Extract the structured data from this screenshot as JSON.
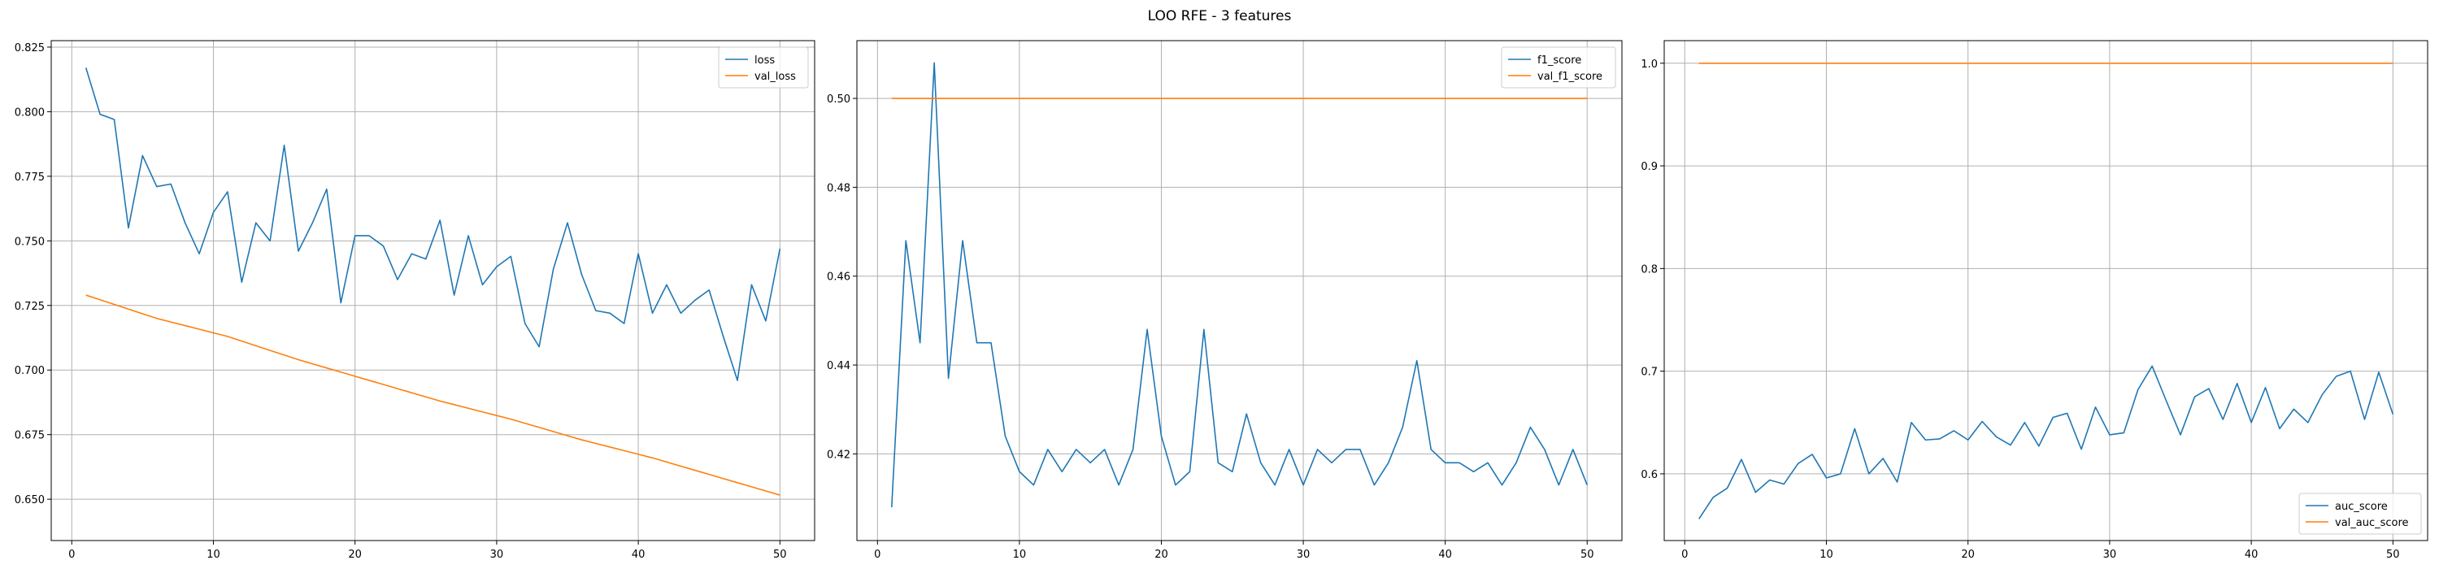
{
  "figure": {
    "title": "LOO RFE - 3 features"
  },
  "colors": {
    "series1": "#1f77b4",
    "series2": "#ff7f0e",
    "grid": "#b0b0b0",
    "axis": "#000000"
  },
  "chart_data": [
    {
      "type": "line",
      "legend": "top-right",
      "grid": true,
      "xlim": [
        -1.45,
        52.45
      ],
      "ylim": [
        0.634,
        0.8275
      ],
      "xticks": [
        0,
        10,
        20,
        30,
        40,
        50
      ],
      "xtick_labels": [
        "0",
        "10",
        "20",
        "30",
        "40",
        "50"
      ],
      "yticks": [
        0.65,
        0.675,
        0.7,
        0.725,
        0.75,
        0.775,
        0.8,
        0.825
      ],
      "ytick_labels": [
        "0.650",
        "0.675",
        "0.700",
        "0.725",
        "0.750",
        "0.775",
        "0.800",
        "0.825"
      ],
      "x": [
        1,
        2,
        3,
        4,
        5,
        6,
        7,
        8,
        9,
        10,
        11,
        12,
        13,
        14,
        15,
        16,
        17,
        18,
        19,
        20,
        21,
        22,
        23,
        24,
        25,
        26,
        27,
        28,
        29,
        30,
        31,
        32,
        33,
        34,
        35,
        36,
        37,
        38,
        39,
        40,
        41,
        42,
        43,
        44,
        45,
        46,
        47,
        48,
        49,
        50
      ],
      "series": [
        {
          "name": "loss",
          "color": "#1f77b4",
          "values": [
            0.817,
            0.799,
            0.797,
            0.755,
            0.783,
            0.771,
            0.772,
            0.757,
            0.745,
            0.761,
            0.769,
            0.734,
            0.757,
            0.75,
            0.787,
            0.746,
            0.757,
            0.77,
            0.726,
            0.752,
            0.752,
            0.748,
            0.735,
            0.745,
            0.743,
            0.758,
            0.729,
            0.752,
            0.733,
            0.74,
            0.744,
            0.718,
            0.709,
            0.739,
            0.757,
            0.737,
            0.723,
            0.722,
            0.718,
            0.745,
            0.722,
            0.733,
            0.722,
            0.727,
            0.731,
            0.713,
            0.696,
            0.733,
            0.719,
            0.747
          ]
        },
        {
          "name": "val_loss",
          "color": "#ff7f0e",
          "values": [
            0.729,
            0.7272,
            0.7254,
            0.7236,
            0.7218,
            0.72,
            0.7186,
            0.7172,
            0.7158,
            0.7144,
            0.713,
            0.7112,
            0.7094,
            0.7076,
            0.7058,
            0.704,
            0.7024,
            0.7008,
            0.6992,
            0.6976,
            0.696,
            0.6944,
            0.6928,
            0.6912,
            0.6896,
            0.688,
            0.6866,
            0.6852,
            0.6838,
            0.6824,
            0.681,
            0.6794,
            0.6778,
            0.6762,
            0.6746,
            0.673,
            0.6716,
            0.6702,
            0.6688,
            0.6674,
            0.666,
            0.6644,
            0.6628,
            0.6612,
            0.6596,
            0.658,
            0.6564,
            0.6548,
            0.6532,
            0.6516
          ]
        }
      ]
    },
    {
      "type": "line",
      "legend": "top-right",
      "grid": true,
      "xlim": [
        -1.45,
        52.45
      ],
      "ylim": [
        0.4005,
        0.513
      ],
      "xticks": [
        0,
        10,
        20,
        30,
        40,
        50
      ],
      "xtick_labels": [
        "0",
        "10",
        "20",
        "30",
        "40",
        "50"
      ],
      "yticks": [
        0.42,
        0.44,
        0.46,
        0.48,
        0.5
      ],
      "ytick_labels": [
        "0.42",
        "0.44",
        "0.46",
        "0.48",
        "0.50"
      ],
      "x": [
        1,
        2,
        3,
        4,
        5,
        6,
        7,
        8,
        9,
        10,
        11,
        12,
        13,
        14,
        15,
        16,
        17,
        18,
        19,
        20,
        21,
        22,
        23,
        24,
        25,
        26,
        27,
        28,
        29,
        30,
        31,
        32,
        33,
        34,
        35,
        36,
        37,
        38,
        39,
        40,
        41,
        42,
        43,
        44,
        45,
        46,
        47,
        48,
        49,
        50
      ],
      "series": [
        {
          "name": "f1_score",
          "color": "#1f77b4",
          "values": [
            0.408,
            0.468,
            0.445,
            0.508,
            0.437,
            0.468,
            0.445,
            0.445,
            0.424,
            0.416,
            0.413,
            0.421,
            0.416,
            0.421,
            0.418,
            0.421,
            0.413,
            0.421,
            0.448,
            0.424,
            0.413,
            0.416,
            0.448,
            0.418,
            0.416,
            0.429,
            0.418,
            0.413,
            0.421,
            0.413,
            0.421,
            0.418,
            0.421,
            0.421,
            0.413,
            0.418,
            0.426,
            0.441,
            0.421,
            0.418,
            0.418,
            0.416,
            0.418,
            0.413,
            0.418,
            0.426,
            0.421,
            0.413,
            0.421,
            0.413
          ]
        },
        {
          "name": "val_f1_score",
          "color": "#ff7f0e",
          "values": [
            0.5,
            0.5,
            0.5,
            0.5,
            0.5,
            0.5,
            0.5,
            0.5,
            0.5,
            0.5,
            0.5,
            0.5,
            0.5,
            0.5,
            0.5,
            0.5,
            0.5,
            0.5,
            0.5,
            0.5,
            0.5,
            0.5,
            0.5,
            0.5,
            0.5,
            0.5,
            0.5,
            0.5,
            0.5,
            0.5,
            0.5,
            0.5,
            0.5,
            0.5,
            0.5,
            0.5,
            0.5,
            0.5,
            0.5,
            0.5,
            0.5,
            0.5,
            0.5,
            0.5,
            0.5,
            0.5,
            0.5,
            0.5,
            0.5,
            0.5
          ]
        }
      ]
    },
    {
      "type": "line",
      "legend": "bottom-right",
      "grid": true,
      "xlim": [
        -1.45,
        52.45
      ],
      "ylim": [
        0.535,
        1.022
      ],
      "xticks": [
        0,
        10,
        20,
        30,
        40,
        50
      ],
      "xtick_labels": [
        "0",
        "10",
        "20",
        "30",
        "40",
        "50"
      ],
      "yticks": [
        0.6,
        0.7,
        0.8,
        0.9,
        1.0
      ],
      "ytick_labels": [
        "0.6",
        "0.7",
        "0.8",
        "0.9",
        "1.0"
      ],
      "x": [
        1,
        2,
        3,
        4,
        5,
        6,
        7,
        8,
        9,
        10,
        11,
        12,
        13,
        14,
        15,
        16,
        17,
        18,
        19,
        20,
        21,
        22,
        23,
        24,
        25,
        26,
        27,
        28,
        29,
        30,
        31,
        32,
        33,
        34,
        35,
        36,
        37,
        38,
        39,
        40,
        41,
        42,
        43,
        44,
        45,
        46,
        47,
        48,
        49,
        50
      ],
      "series": [
        {
          "name": "auc_score",
          "color": "#1f77b4",
          "values": [
            0.556,
            0.577,
            0.586,
            0.614,
            0.582,
            0.594,
            0.59,
            0.61,
            0.619,
            0.596,
            0.6,
            0.644,
            0.6,
            0.615,
            0.592,
            0.65,
            0.633,
            0.634,
            0.642,
            0.633,
            0.651,
            0.636,
            0.628,
            0.65,
            0.627,
            0.655,
            0.659,
            0.624,
            0.665,
            0.638,
            0.64,
            0.682,
            0.705,
            0.671,
            0.638,
            0.675,
            0.683,
            0.653,
            0.688,
            0.65,
            0.684,
            0.644,
            0.663,
            0.65,
            0.677,
            0.695,
            0.7,
            0.653,
            0.699,
            0.658
          ]
        },
        {
          "name": "val_auc_score",
          "color": "#ff7f0e",
          "values": [
            1,
            1,
            1,
            1,
            1,
            1,
            1,
            1,
            1,
            1,
            1,
            1,
            1,
            1,
            1,
            1,
            1,
            1,
            1,
            1,
            1,
            1,
            1,
            1,
            1,
            1,
            1,
            1,
            1,
            1,
            1,
            1,
            1,
            1,
            1,
            1,
            1,
            1,
            1,
            1,
            1,
            1,
            1,
            1,
            1,
            1,
            1,
            1,
            1,
            1
          ]
        }
      ]
    }
  ]
}
